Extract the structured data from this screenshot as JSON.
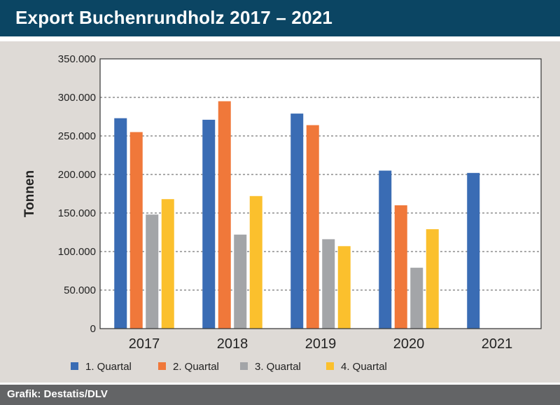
{
  "header": {
    "title": "Export Buchenrundholz 2017 – 2021"
  },
  "footer": {
    "source": "Grafik: Destatis/DLV"
  },
  "colors": {
    "header_bg": "#0b4563",
    "panel_bg": "#dedad6",
    "footer_bg": "#636466"
  },
  "chart_data": {
    "type": "bar",
    "title": "",
    "xlabel": "",
    "ylabel": "Tonnen",
    "ylim": [
      0,
      350000
    ],
    "yticks": [
      0,
      50000,
      100000,
      150000,
      200000,
      250000,
      300000,
      350000
    ],
    "ytick_labels": [
      "0",
      "50.000",
      "100.000",
      "150.000",
      "200.000",
      "250.000",
      "300.000",
      "350.000"
    ],
    "grid": true,
    "legend": "bottom",
    "categories": [
      "2017",
      "2018",
      "2019",
      "2020",
      "2021"
    ],
    "series": [
      {
        "name": "1. Quartal",
        "color": "#3a6cb4",
        "values": [
          273000,
          271000,
          279000,
          205000,
          202000
        ]
      },
      {
        "name": "2. Quartal",
        "color": "#f0783a",
        "values": [
          255000,
          295000,
          264000,
          160000,
          null
        ]
      },
      {
        "name": "3. Quartal",
        "color": "#a3a5a8",
        "values": [
          148000,
          122000,
          116000,
          79000,
          null
        ]
      },
      {
        "name": "4. Quartal",
        "color": "#fbc02d",
        "values": [
          168000,
          172000,
          107000,
          129000,
          null
        ]
      }
    ]
  }
}
